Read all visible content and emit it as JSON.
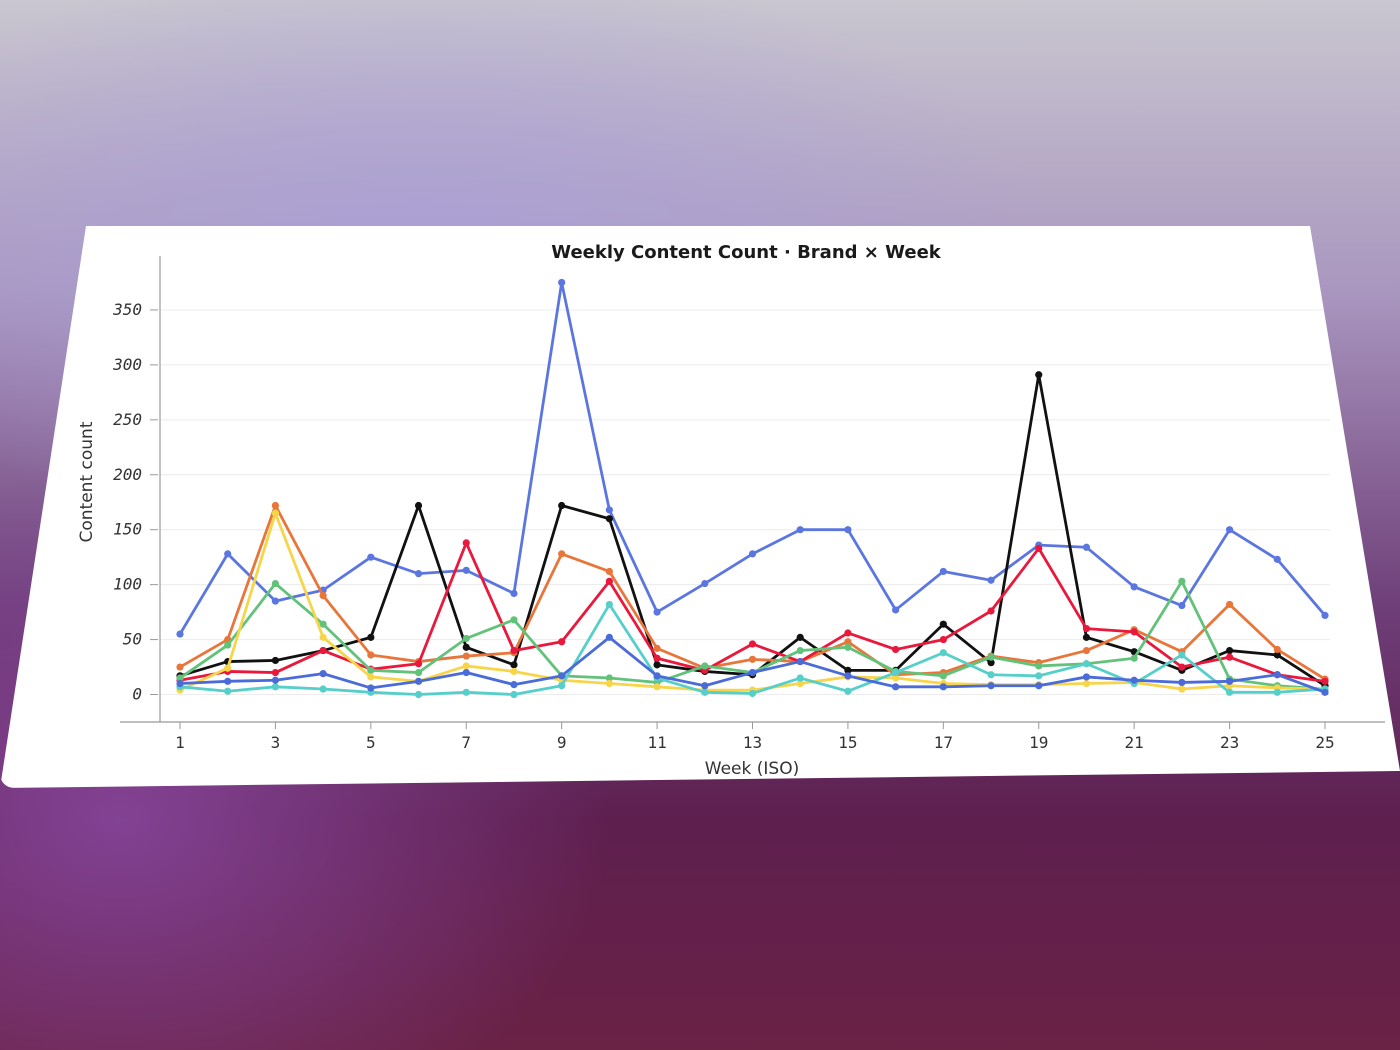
{
  "chart_data": {
    "type": "line",
    "title": "Weekly Content Count · Brand × Week",
    "xlabel": "Week (ISO)",
    "ylabel": "Content count",
    "x": [
      1,
      2,
      3,
      4,
      5,
      6,
      7,
      8,
      9,
      10,
      11,
      12,
      13,
      14,
      15,
      16,
      17,
      18,
      19,
      20,
      21,
      22,
      23,
      24,
      25
    ],
    "xticks": [
      1,
      3,
      5,
      7,
      9,
      11,
      13,
      15,
      17,
      19,
      21,
      23,
      25
    ],
    "yticks": [
      0,
      50,
      100,
      150,
      200,
      250,
      300,
      350
    ],
    "ylim": [
      -15,
      390
    ],
    "grid": "horizontal",
    "legend": "none",
    "series": [
      {
        "color": "#5b76e0",
        "values": [
          55,
          128,
          85,
          95,
          125,
          110,
          113,
          92,
          375,
          168,
          75,
          101,
          128,
          150,
          150,
          77,
          112,
          104,
          136,
          134,
          98,
          81,
          150,
          123,
          72
        ]
      },
      {
        "color": "#111111",
        "values": [
          17,
          30,
          31,
          40,
          52,
          172,
          43,
          27,
          172,
          160,
          27,
          21,
          18,
          52,
          22,
          22,
          64,
          29,
          291,
          52,
          39,
          22,
          40,
          36,
          8
        ]
      },
      {
        "color": "#e8763a",
        "values": [
          25,
          50,
          172,
          90,
          36,
          30,
          35,
          38,
          128,
          112,
          42,
          24,
          32,
          30,
          48,
          18,
          20,
          35,
          29,
          40,
          59,
          39,
          82,
          41,
          14
        ]
      },
      {
        "color": "#e8193c",
        "values": [
          13,
          21,
          20,
          40,
          23,
          28,
          138,
          40,
          48,
          103,
          33,
          22,
          46,
          30,
          56,
          41,
          50,
          76,
          133,
          60,
          57,
          25,
          34,
          18,
          12
        ]
      },
      {
        "color": "#62c27a",
        "values": [
          15,
          45,
          101,
          64,
          22,
          20,
          51,
          68,
          17,
          15,
          11,
          26,
          20,
          40,
          43,
          21,
          17,
          34,
          26,
          28,
          33,
          103,
          14,
          8,
          5
        ]
      },
      {
        "color": "#f7d54a",
        "values": [
          4,
          24,
          165,
          52,
          16,
          12,
          26,
          21,
          13,
          10,
          7,
          4,
          4,
          10,
          16,
          15,
          10,
          9,
          9,
          10,
          11,
          5,
          8,
          6,
          5
        ]
      },
      {
        "color": "#56cfca",
        "values": [
          7,
          3,
          7,
          5,
          2,
          0,
          2,
          0,
          8,
          82,
          15,
          2,
          1,
          15,
          3,
          20,
          38,
          18,
          17,
          28,
          10,
          36,
          2,
          2,
          5
        ]
      },
      {
        "color": "#4a6bd8",
        "values": [
          10,
          12,
          13,
          19,
          6,
          12,
          20,
          9,
          17,
          52,
          17,
          8,
          20,
          30,
          17,
          7,
          7,
          8,
          8,
          16,
          13,
          11,
          12,
          18,
          2
        ]
      }
    ]
  }
}
